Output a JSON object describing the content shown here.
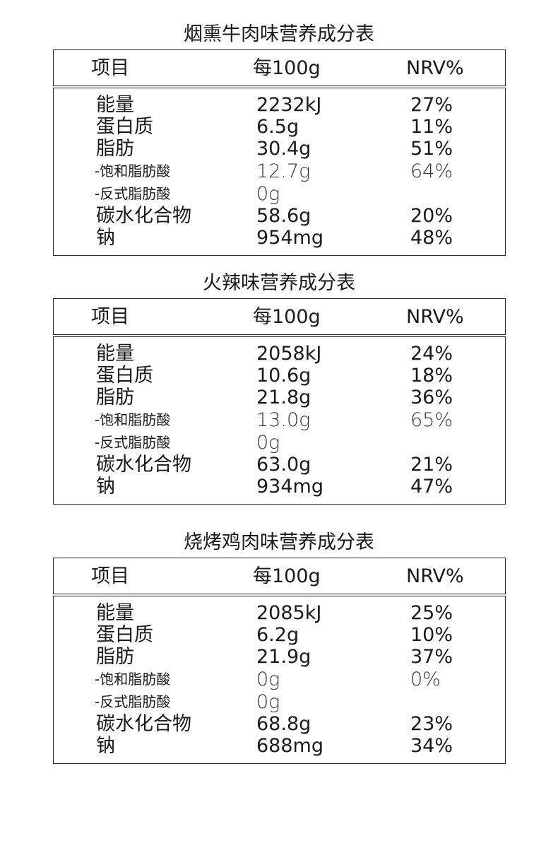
{
  "tables": [
    {
      "title": "烟熏牛肉味营养成分表",
      "headers": {
        "item": "项目",
        "per100g": "每100g",
        "nrv": "NRV%"
      },
      "rows": [
        {
          "name": "能量",
          "value": "2232kJ",
          "nrv": "27%"
        },
        {
          "name": "蛋白质",
          "value": "6.5g",
          "nrv": "11%"
        },
        {
          "name": "脂肪",
          "value": "30.4g",
          "nrv": "51%"
        },
        {
          "name": "-饱和脂肪酸",
          "value": "12.7g",
          "nrv": "64%"
        },
        {
          "name": "-反式脂肪酸",
          "value": "0g",
          "nrv": ""
        },
        {
          "name": "碳水化合物",
          "value": "58.6g",
          "nrv": "20%"
        },
        {
          "name": "钠",
          "value": "954mg",
          "nrv": "48%"
        }
      ]
    },
    {
      "title": "火辣味营养成分表",
      "headers": {
        "item": "项目",
        "per100g": "每100g",
        "nrv": "NRV%"
      },
      "rows": [
        {
          "name": "能量",
          "value": "2058kJ",
          "nrv": "24%"
        },
        {
          "name": "蛋白质",
          "value": "10.6g",
          "nrv": "18%"
        },
        {
          "name": "脂肪",
          "value": "21.8g",
          "nrv": "36%"
        },
        {
          "name": "-饱和脂肪酸",
          "value": "13.0g",
          "nrv": "65%"
        },
        {
          "name": "-反式脂肪酸",
          "value": "0g",
          "nrv": ""
        },
        {
          "name": "碳水化合物",
          "value": "63.0g",
          "nrv": "21%"
        },
        {
          "name": "钠",
          "value": "934mg",
          "nrv": "47%"
        }
      ]
    },
    {
      "title": "烧烤鸡肉味营养成分表",
      "headers": {
        "item": "项目",
        "per100g": "每100g",
        "nrv": "NRV%"
      },
      "rows": [
        {
          "name": "能量",
          "value": "2085kJ",
          "nrv": "25%"
        },
        {
          "name": "蛋白质",
          "value": "6.2g",
          "nrv": "10%"
        },
        {
          "name": "脂肪",
          "value": "21.9g",
          "nrv": "37%"
        },
        {
          "name": "-饱和脂肪酸",
          "value": "0g",
          "nrv": "0%"
        },
        {
          "name": "-反式脂肪酸",
          "value": "0g",
          "nrv": ""
        },
        {
          "name": "碳水化合物",
          "value": "68.8g",
          "nrv": "23%"
        },
        {
          "name": "钠",
          "value": "688mg",
          "nrv": "34%"
        }
      ]
    }
  ]
}
